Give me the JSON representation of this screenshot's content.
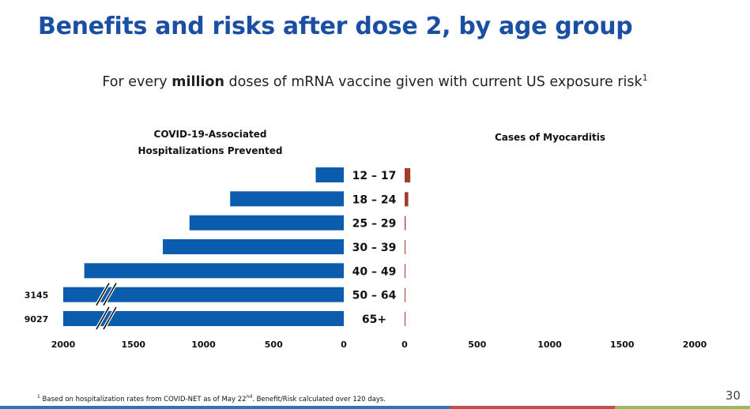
{
  "slide": {
    "title": "Benefits and risks after dose 2, by age group",
    "subtitle_pre": "For every ",
    "subtitle_bold": "million",
    "subtitle_post": " doses of mRNA vaccine given with current US exposure risk",
    "subtitle_sup": "1",
    "page_number": "30",
    "footnote_sup": "1",
    "footnote_pre": " Based on hospitalization rates from COVID-NET as of May 22",
    "footnote_nd": "nd",
    "footnote_post": ". Benefit/Risk calculated over 120 days."
  },
  "chart_data": {
    "type": "bar",
    "layout": "butterfly",
    "subtitle": "For every million doses of mRNA vaccine given with current US exposure risk",
    "categories": [
      "12 – 17",
      "18 – 24",
      "25 – 29",
      "30 – 39",
      "40 – 49",
      "50 – 64",
      "65+"
    ],
    "series": [
      {
        "name": "COVID-19-Associated Hospitalizations Prevented",
        "title_line1": "COVID-19-Associated",
        "title_line2": "Hospitalizations Prevented",
        "values": [
          200,
          810,
          1100,
          1290,
          1850,
          3145,
          9027
        ],
        "color": "#0b5cad",
        "direction": "left",
        "truncated": [
          false,
          false,
          false,
          false,
          false,
          true,
          true
        ],
        "value_labels": [
          "",
          "",
          "",
          "",
          "",
          "3145",
          "9027"
        ]
      },
      {
        "name": "Cases of Myocarditis",
        "title": "Cases of Myocarditis",
        "values": [
          39,
          25,
          7,
          5,
          4,
          1,
          0.5
        ],
        "color": "#a23b2a",
        "direction": "right"
      }
    ],
    "left_axis": {
      "range": [
        0,
        2000
      ],
      "ticks": [
        2000,
        1500,
        1000,
        500,
        0
      ],
      "tick_labels": [
        "2000",
        "1500",
        "1000",
        "500",
        "0"
      ]
    },
    "right_axis": {
      "range": [
        0,
        2000
      ],
      "ticks": [
        0,
        500,
        1000,
        1500,
        2000
      ],
      "tick_labels": [
        "0",
        "500",
        "1000",
        "1500",
        "2000"
      ]
    },
    "grid": false,
    "legend": "none"
  },
  "colors": {
    "title": "#1a4fa3",
    "benefit_bar": "#0b5cad",
    "risk_bar": "#a23b2a",
    "footer_rule": [
      "#2e75b6",
      "#c0504d",
      "#9bbb59"
    ]
  }
}
